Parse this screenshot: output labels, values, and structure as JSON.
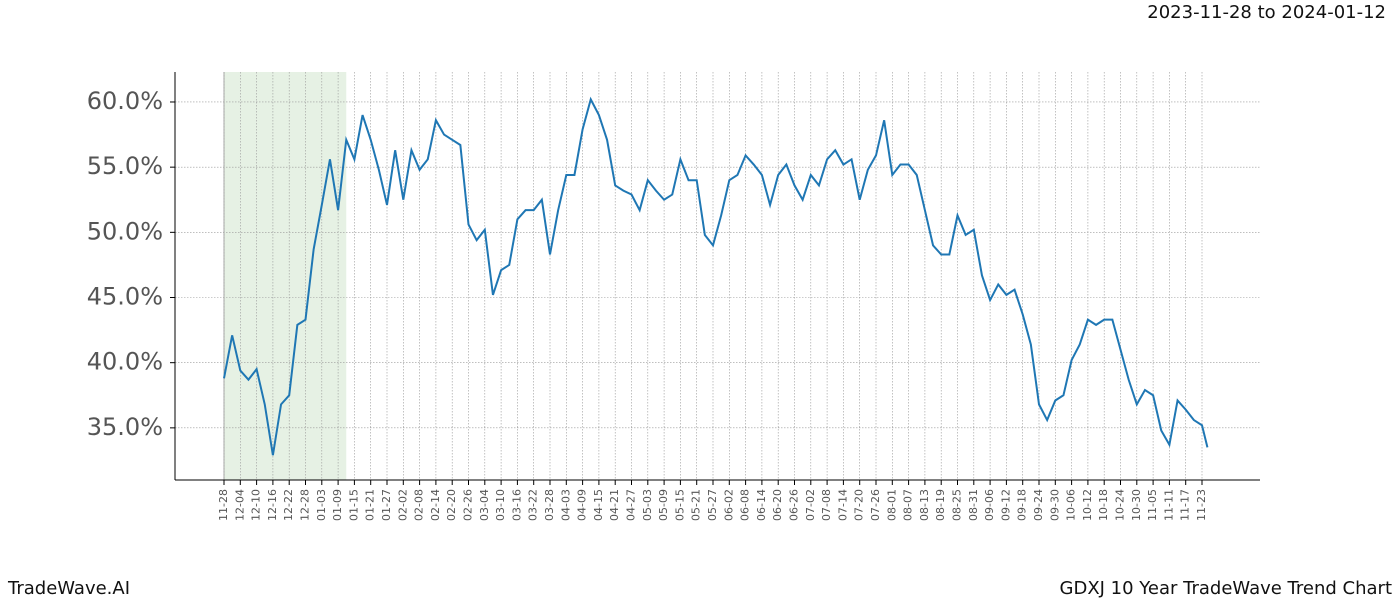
{
  "chart_data": {
    "type": "line",
    "date_range": "2023-11-28 to 2024-01-12",
    "brand": "TradeWave.AI",
    "title": "GDXJ 10 Year TradeWave Trend Chart",
    "color": "#1f77b4",
    "highlight": {
      "start": "11-28",
      "end": "01-12",
      "color": "#e6f1e4"
    },
    "grid": true,
    "x": [
      "11-28",
      "12-01",
      "12-04",
      "12-07",
      "12-10",
      "12-13",
      "12-16",
      "12-19",
      "12-22",
      "12-25",
      "12-28",
      "12-31",
      "01-03",
      "01-06",
      "01-09",
      "01-12",
      "01-15",
      "01-18",
      "01-21",
      "01-24",
      "01-27",
      "01-30",
      "02-02",
      "02-05",
      "02-08",
      "02-11",
      "02-14",
      "02-17",
      "02-20",
      "02-23",
      "02-26",
      "03-01",
      "03-04",
      "03-07",
      "03-10",
      "03-13",
      "03-16",
      "03-19",
      "03-22",
      "03-25",
      "03-28",
      "03-31",
      "04-03",
      "04-06",
      "04-09",
      "04-12",
      "04-15",
      "04-18",
      "04-21",
      "04-24",
      "04-27",
      "04-30",
      "05-03",
      "05-06",
      "05-09",
      "05-12",
      "05-15",
      "05-18",
      "05-21",
      "05-24",
      "05-27",
      "05-30",
      "06-02",
      "06-05",
      "06-08",
      "06-11",
      "06-14",
      "06-17",
      "06-20",
      "06-23",
      "06-26",
      "06-29",
      "07-02",
      "07-05",
      "07-08",
      "07-11",
      "07-14",
      "07-17",
      "07-20",
      "07-23",
      "07-26",
      "07-29",
      "08-01",
      "08-04",
      "08-07",
      "08-10",
      "08-13",
      "08-16",
      "08-19",
      "08-22",
      "08-25",
      "08-28",
      "08-31",
      "09-03",
      "09-06",
      "09-09",
      "09-12",
      "09-15",
      "09-18",
      "09-21",
      "09-24",
      "09-27",
      "09-30",
      "10-03",
      "10-06",
      "10-09",
      "10-12",
      "10-15",
      "10-18",
      "10-21",
      "10-24",
      "10-27",
      "10-30",
      "11-02",
      "11-05",
      "11-08",
      "11-11",
      "11-14",
      "11-17",
      "11-20",
      "11-23",
      "11-25"
    ],
    "values": [
      38.8,
      42.1,
      39.4,
      38.7,
      39.5,
      36.8,
      32.9,
      36.8,
      37.5,
      42.9,
      43.3,
      48.7,
      52.1,
      55.6,
      51.7,
      57.1,
      55.6,
      59.0,
      57.1,
      54.8,
      52.1,
      56.3,
      52.5,
      56.3,
      54.8,
      55.6,
      58.6,
      57.5,
      57.1,
      56.7,
      50.6,
      49.4,
      50.2,
      45.2,
      47.1,
      47.5,
      51.0,
      51.7,
      51.7,
      52.5,
      48.3,
      51.7,
      54.4,
      54.4,
      57.9,
      60.2,
      59.0,
      57.1,
      53.6,
      53.2,
      52.9,
      51.7,
      54.0,
      53.2,
      52.5,
      52.9,
      55.6,
      54.0,
      54.0,
      49.8,
      49.0,
      51.3,
      54.0,
      54.4,
      55.9,
      55.2,
      54.4,
      52.1,
      54.4,
      55.2,
      53.6,
      52.5,
      54.4,
      53.6,
      55.6,
      56.3,
      55.2,
      55.6,
      52.5,
      54.8,
      55.9,
      58.6,
      54.4,
      55.2,
      55.2,
      54.4,
      51.7,
      49.0,
      48.3,
      48.3,
      51.3,
      49.8,
      50.2,
      46.7,
      44.8,
      46.0,
      45.2,
      45.6,
      43.7,
      41.4,
      36.8,
      35.6,
      37.1,
      37.5,
      40.2,
      41.4,
      43.3,
      42.9,
      43.3,
      43.3,
      41.0,
      38.7,
      36.8,
      37.9,
      37.5,
      34.8,
      33.7,
      37.1,
      36.4,
      35.6,
      35.2,
      33.5
    ],
    "xticks": [
      "11-28",
      "12-04",
      "12-10",
      "12-16",
      "12-22",
      "12-28",
      "01-03",
      "01-09",
      "01-15",
      "01-21",
      "01-27",
      "02-02",
      "02-08",
      "02-14",
      "02-20",
      "02-26",
      "03-04",
      "03-10",
      "03-16",
      "03-22",
      "03-28",
      "04-03",
      "04-09",
      "04-15",
      "04-21",
      "04-27",
      "05-03",
      "05-09",
      "05-15",
      "05-21",
      "05-27",
      "06-02",
      "06-08",
      "06-14",
      "06-20",
      "06-26",
      "07-02",
      "07-08",
      "07-14",
      "07-20",
      "07-26",
      "08-01",
      "08-07",
      "08-13",
      "08-19",
      "08-25",
      "08-31",
      "09-06",
      "09-12",
      "09-18",
      "09-24",
      "09-30",
      "10-06",
      "10-12",
      "10-18",
      "10-24",
      "10-30",
      "11-05",
      "11-11",
      "11-17",
      "11-23"
    ],
    "ylim": [
      31,
      62.3
    ],
    "yticks": [
      {
        "value": 35,
        "label": "35.0%"
      },
      {
        "value": 40,
        "label": "40.0%"
      },
      {
        "value": 45,
        "label": "45.0%"
      },
      {
        "value": 50,
        "label": "50.0%"
      },
      {
        "value": 55,
        "label": "55.0%"
      },
      {
        "value": 60,
        "label": "60.0%"
      }
    ]
  }
}
